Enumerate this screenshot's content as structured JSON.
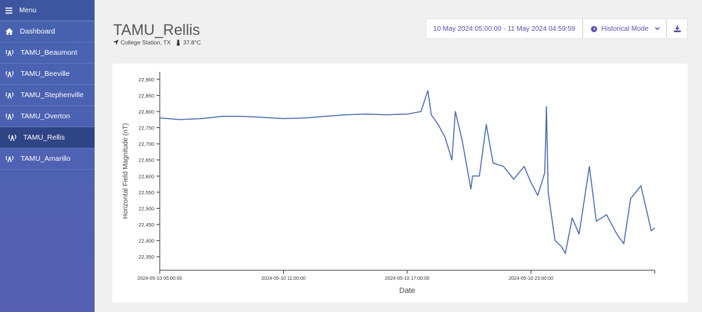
{
  "sidebar": {
    "menu": "Menu",
    "items": [
      "Dashboard",
      "TAMU_Beaumont",
      "TAMU_Beeville",
      "TAMU_Stephenville",
      "TAMU_Overton",
      "TAMU_Rellis",
      "TAMU_Amarillo"
    ],
    "active": 5
  },
  "header": {
    "title": "TAMU_Rellis",
    "location": "College Station, TX",
    "temperature": "37.8°C"
  },
  "controls": {
    "date_range": "10 May 2024 05:00:00 - 11 May 2024 04:59:59",
    "mode": "Historical Mode"
  },
  "chart_data": {
    "type": "line",
    "x_label": "Date",
    "y_label": "Horizontal Field Magnitude (nT)",
    "color": "#4a68ad",
    "x": [
      "2024-05-10 05:00:00",
      "2024-05-10 06:00:00",
      "2024-05-10 07:00:00",
      "2024-05-10 08:00:00",
      "2024-05-10 09:00:00",
      "2024-05-10 10:00:00",
      "2024-05-10 11:00:00",
      "2024-05-10 12:00:00",
      "2024-05-10 13:00:00",
      "2024-05-10 14:00:00",
      "2024-05-10 15:00:00",
      "2024-05-10 16:00:00",
      "2024-05-10 17:00:00",
      "2024-05-10 17:40:00",
      "2024-05-10 18:00:00",
      "2024-05-10 18:10:00",
      "2024-05-10 18:30:00",
      "2024-05-10 18:50:00",
      "2024-05-10 19:10:00",
      "2024-05-10 19:20:00",
      "2024-05-10 19:40:00",
      "2024-05-10 20:05:00",
      "2024-05-10 20:10:00",
      "2024-05-10 20:30:00",
      "2024-05-10 20:50:00",
      "2024-05-10 21:10:00",
      "2024-05-10 21:40:00",
      "2024-05-10 22:10:00",
      "2024-05-10 22:40:00",
      "2024-05-10 23:00:00",
      "2024-05-10 23:20:00",
      "2024-05-10 23:40:00",
      "2024-05-10 23:45:00",
      "2024-05-10 23:50:00",
      "2024-05-11 00:10:00",
      "2024-05-11 00:30:00",
      "2024-05-11 00:40:00",
      "2024-05-11 01:00:00",
      "2024-05-11 01:20:00",
      "2024-05-11 01:50:00",
      "2024-05-11 02:10:00",
      "2024-05-11 02:40:00",
      "2024-05-11 03:10:00",
      "2024-05-11 03:30:00",
      "2024-05-11 03:50:00",
      "2024-05-11 04:20:00",
      "2024-05-11 04:35:00",
      "2024-05-11 04:50:00",
      "2024-05-11 05:00:00"
    ],
    "values": [
      22780,
      22775,
      22778,
      22785,
      22785,
      22782,
      22778,
      22780,
      22785,
      22790,
      22792,
      22790,
      22792,
      22800,
      22865,
      22790,
      22760,
      22720,
      22650,
      22800,
      22710,
      22560,
      22600,
      22600,
      22760,
      22640,
      22630,
      22590,
      22630,
      22580,
      22540,
      22610,
      22815,
      22550,
      22400,
      22380,
      22360,
      22470,
      22420,
      22630,
      22460,
      22480,
      22420,
      22390,
      22530,
      22570,
      22500,
      22430,
      22440
    ],
    "xlim": [
      "2024-05-10 05:00:00",
      "2024-05-11 05:00:00"
    ],
    "xticks": [
      "2024-05-10 05:00:00",
      "2024-05-10 11:00:00",
      "2024-05-10 17:00:00",
      "2024-05-10 23:00:00"
    ],
    "ylim": [
      22308,
      22923
    ],
    "yticks": [
      {
        "value": 22350,
        "label": "22,350"
      },
      {
        "value": 22400,
        "label": "22,400"
      },
      {
        "value": 22450,
        "label": "22,450"
      },
      {
        "value": 22500,
        "label": "22,500"
      },
      {
        "value": 22550,
        "label": "22,550"
      },
      {
        "value": 22600,
        "label": "22,600"
      },
      {
        "value": 22650,
        "label": "22,650"
      },
      {
        "value": 22700,
        "label": "22,700"
      },
      {
        "value": 22750,
        "label": "22,750"
      },
      {
        "value": 22800,
        "label": "22,800"
      },
      {
        "value": 22850,
        "label": "22,850"
      },
      {
        "value": 22900,
        "label": "22,900"
      }
    ]
  }
}
